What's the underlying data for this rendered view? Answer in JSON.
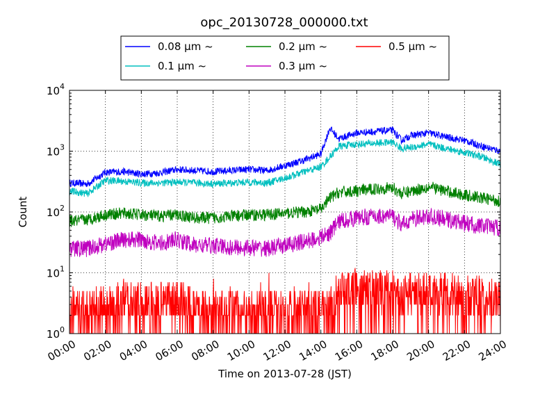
{
  "chart_data": {
    "type": "line",
    "title": "opc_20130728_000000.txt",
    "xlabel": "Time on 2013-07-28 (JST)",
    "ylabel": "Count",
    "y_scale": "log",
    "ylim": [
      1,
      10000
    ],
    "xlim": [
      "00:00",
      "24:00"
    ],
    "x_ticks": [
      "00:00",
      "02:00",
      "04:00",
      "06:00",
      "08:00",
      "10:00",
      "12:00",
      "14:00",
      "16:00",
      "18:00",
      "20:00",
      "22:00",
      "24:00"
    ],
    "y_ticks": [
      {
        "base": "10",
        "exp": "0"
      },
      {
        "base": "10",
        "exp": "1"
      },
      {
        "base": "10",
        "exp": "2"
      },
      {
        "base": "10",
        "exp": "3"
      },
      {
        "base": "10",
        "exp": "4"
      }
    ],
    "grid": true,
    "legend_position": "top",
    "legend_unit": "μm ~",
    "x": [
      "00:00",
      "01:00",
      "02:00",
      "03:00",
      "04:00",
      "05:00",
      "06:00",
      "07:00",
      "08:00",
      "09:00",
      "10:00",
      "11:00",
      "12:00",
      "13:00",
      "14:00",
      "14:30",
      "15:00",
      "16:00",
      "17:00",
      "18:00",
      "18:30",
      "19:00",
      "20:00",
      "21:00",
      "22:00",
      "23:00",
      "24:00"
    ],
    "series": [
      {
        "name": "0.08",
        "color": "#0000ff",
        "noise": 0.06,
        "values": [
          300,
          290,
          450,
          460,
          420,
          440,
          500,
          480,
          460,
          480,
          500,
          480,
          580,
          700,
          900,
          2400,
          1600,
          2000,
          2100,
          2200,
          1500,
          1800,
          2000,
          1700,
          1500,
          1200,
          1000
        ]
      },
      {
        "name": "0.1",
        "color": "#00bfbf",
        "noise": 0.06,
        "values": [
          220,
          200,
          330,
          320,
          300,
          300,
          310,
          300,
          290,
          300,
          310,
          300,
          360,
          450,
          550,
          800,
          1200,
          1300,
          1350,
          1400,
          1100,
          1150,
          1300,
          1100,
          950,
          800,
          600
        ]
      },
      {
        "name": "0.2",
        "color": "#008000",
        "noise": 0.1,
        "values": [
          70,
          75,
          90,
          95,
          90,
          85,
          90,
          80,
          80,
          85,
          90,
          90,
          95,
          100,
          110,
          170,
          210,
          220,
          240,
          250,
          200,
          220,
          260,
          220,
          190,
          170,
          150
        ]
      },
      {
        "name": "0.3",
        "color": "#bf00bf",
        "noise": 0.14,
        "values": [
          25,
          25,
          30,
          35,
          35,
          30,
          35,
          28,
          28,
          26,
          26,
          25,
          28,
          32,
          38,
          45,
          70,
          80,
          85,
          85,
          60,
          75,
          85,
          75,
          65,
          58,
          55
        ]
      },
      {
        "name": "0.5",
        "color": "#ff0000",
        "noise": 0.3,
        "values": [
          2.5,
          2.5,
          3,
          3,
          3.5,
          3,
          3.5,
          2.5,
          2.5,
          2.5,
          2.5,
          2.5,
          2.5,
          2.5,
          2.5,
          3,
          5,
          5.5,
          5,
          5,
          4,
          4.5,
          5,
          4.5,
          4,
          4,
          4
        ]
      }
    ]
  }
}
